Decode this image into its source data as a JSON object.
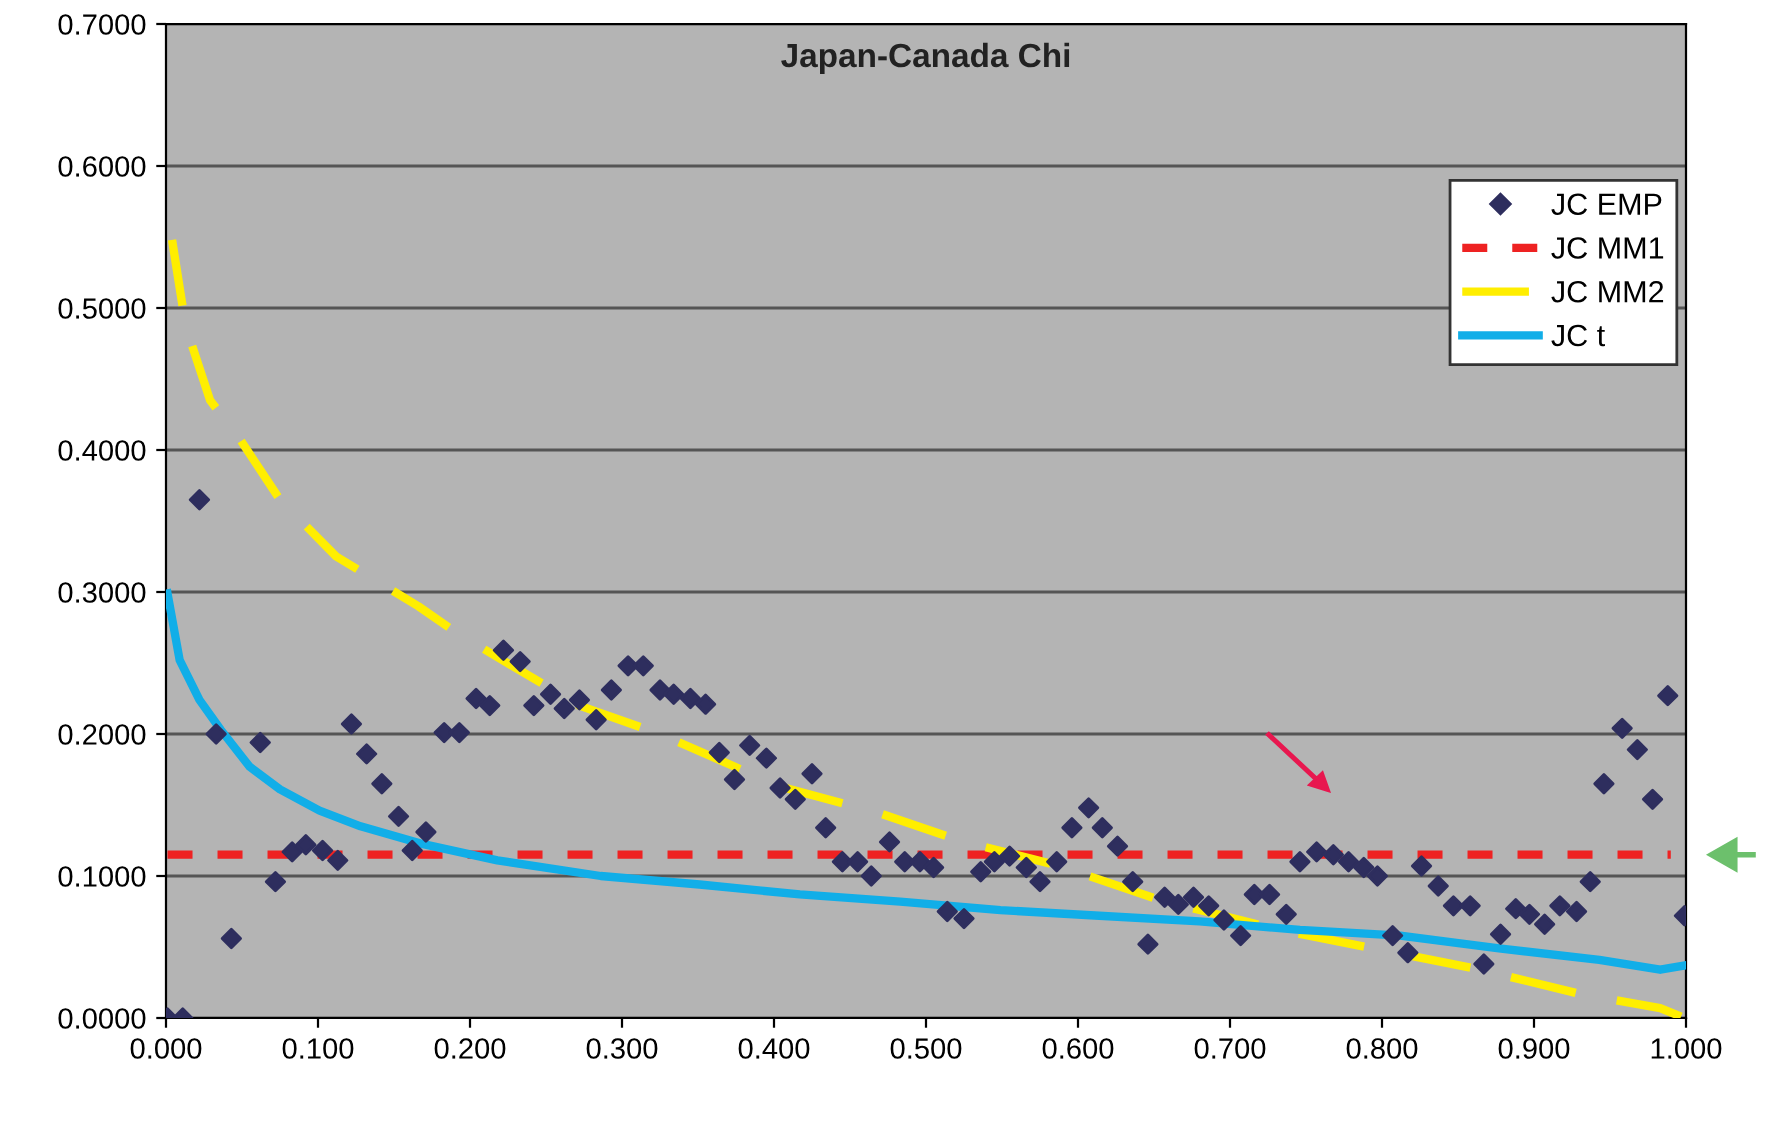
{
  "chart_data": {
    "type": "scatter",
    "title": "Japan-Canada Chi",
    "xlim": [
      0,
      1
    ],
    "xticks": [
      {
        "value": 0,
        "label": "0.000"
      },
      {
        "value": 0.1,
        "label": "0.100"
      },
      {
        "value": 0.2,
        "label": "0.200"
      },
      {
        "value": 0.3,
        "label": "0.300"
      },
      {
        "value": 0.4,
        "label": "0.400"
      },
      {
        "value": 0.5,
        "label": "0.500"
      },
      {
        "value": 0.6,
        "label": "0.600"
      },
      {
        "value": 0.7,
        "label": "0.700"
      },
      {
        "value": 0.8,
        "label": "0.800"
      },
      {
        "value": 0.9,
        "label": "0.900"
      },
      {
        "value": 1,
        "label": "1.000"
      }
    ],
    "ylim": [
      0,
      0.7
    ],
    "yticks": [
      {
        "value": 0,
        "label": "0.0000"
      },
      {
        "value": 0.1,
        "label": "0.1000"
      },
      {
        "value": 0.2,
        "label": "0.2000"
      },
      {
        "value": 0.3,
        "label": "0.3000"
      },
      {
        "value": 0.4,
        "label": "0.4000"
      },
      {
        "value": 0.5,
        "label": "0.5000"
      },
      {
        "value": 0.6,
        "label": "0.6000"
      },
      {
        "value": 0.7,
        "label": "0.7000"
      }
    ],
    "grid": "y",
    "legend": "right",
    "series": [
      {
        "name": "JC EMP",
        "marker": "diamond",
        "color": "#2e2e5e",
        "x": [
          0.001,
          0.011,
          0.022,
          0.033,
          0.043,
          0.062,
          0.072,
          0.083,
          0.092,
          0.103,
          0.113,
          0.122,
          0.132,
          0.142,
          0.153,
          0.162,
          0.171,
          0.183,
          0.193,
          0.204,
          0.213,
          0.222,
          0.233,
          0.242,
          0.253,
          0.262,
          0.272,
          0.283,
          0.293,
          0.304,
          0.314,
          0.325,
          0.334,
          0.345,
          0.355,
          0.364,
          0.374,
          0.384,
          0.395,
          0.404,
          0.414,
          0.425,
          0.434,
          0.445,
          0.455,
          0.464,
          0.476,
          0.486,
          0.496,
          0.505,
          0.514,
          0.525,
          0.536,
          0.545,
          0.555,
          0.566,
          0.575,
          0.586,
          0.596,
          0.607,
          0.616,
          0.626,
          0.636,
          0.646,
          0.657,
          0.666,
          0.676,
          0.686,
          0.696,
          0.707,
          0.716,
          0.726,
          0.737,
          0.746,
          0.757,
          0.768,
          0.778,
          0.788,
          0.797,
          0.807,
          0.817,
          0.826,
          0.837,
          0.847,
          0.858,
          0.867,
          0.878,
          0.888,
          0.897,
          0.907,
          0.917,
          0.928,
          0.937,
          0.946,
          0.958,
          0.968,
          0.978,
          0.988,
          0.999
        ],
        "values": [
          0,
          0,
          0.365,
          0.2,
          0.056,
          0.194,
          0.096,
          0.117,
          0.122,
          0.118,
          0.111,
          0.207,
          0.186,
          0.165,
          0.142,
          0.118,
          0.131,
          0.201,
          0.201,
          0.225,
          0.22,
          0.259,
          0.251,
          0.22,
          0.228,
          0.218,
          0.224,
          0.21,
          0.231,
          0.248,
          0.248,
          0.231,
          0.228,
          0.225,
          0.221,
          0.187,
          0.168,
          0.192,
          0.183,
          0.162,
          0.154,
          0.172,
          0.134,
          0.11,
          0.11,
          0.1,
          0.124,
          0.11,
          0.11,
          0.106,
          0.075,
          0.07,
          0.103,
          0.11,
          0.114,
          0.106,
          0.096,
          0.11,
          0.134,
          0.148,
          0.134,
          0.121,
          0.096,
          0.052,
          0.085,
          0.08,
          0.085,
          0.079,
          0.069,
          0.058,
          0.087,
          0.087,
          0.073,
          0.11,
          0.117,
          0.115,
          0.11,
          0.106,
          0.1,
          0.058,
          0.046,
          0.107,
          0.093,
          0.079,
          0.079,
          0.038,
          0.059,
          0.077,
          0.073,
          0.066,
          0.079,
          0.075,
          0.096,
          0.165,
          0.204,
          0.189,
          0.154,
          0.227,
          0.072
        ]
      },
      {
        "name": "JC MM1",
        "type": "line",
        "line_style": "dotted",
        "color": "#ee2222",
        "x": [
          0.001,
          0.99
        ],
        "values": [
          0.115,
          0.115
        ]
      },
      {
        "name": "JC MM2",
        "type": "line",
        "line_style": "dashed",
        "color": "#ffee00",
        "x": [
          0.004,
          0.013,
          0.029,
          0.049,
          0.075,
          0.112,
          0.166,
          0.193,
          0.272,
          0.325,
          0.404,
          0.47,
          0.522,
          0.588,
          0.654,
          0.733,
          0.799,
          0.865,
          0.93,
          0.983,
          0.999
        ],
        "values": [
          0.548,
          0.487,
          0.435,
          0.407,
          0.365,
          0.325,
          0.29,
          0.27,
          0.22,
          0.2,
          0.163,
          0.144,
          0.125,
          0.107,
          0.083,
          0.062,
          0.048,
          0.034,
          0.017,
          0.007,
          0.0
        ]
      },
      {
        "name": "JC t",
        "type": "line",
        "line_style": "solid",
        "color": "#11aee8",
        "x": [
          0.001,
          0.009,
          0.022,
          0.036,
          0.055,
          0.075,
          0.101,
          0.128,
          0.167,
          0.218,
          0.286,
          0.351,
          0.417,
          0.483,
          0.549,
          0.614,
          0.68,
          0.746,
          0.812,
          0.877,
          0.943,
          0.983,
          0.999
        ],
        "values": [
          0.299,
          0.252,
          0.224,
          0.203,
          0.177,
          0.161,
          0.146,
          0.135,
          0.123,
          0.111,
          0.1,
          0.094,
          0.087,
          0.082,
          0.076,
          0.072,
          0.068,
          0.062,
          0.058,
          0.049,
          0.041,
          0.034,
          0.037
        ]
      }
    ]
  }
}
